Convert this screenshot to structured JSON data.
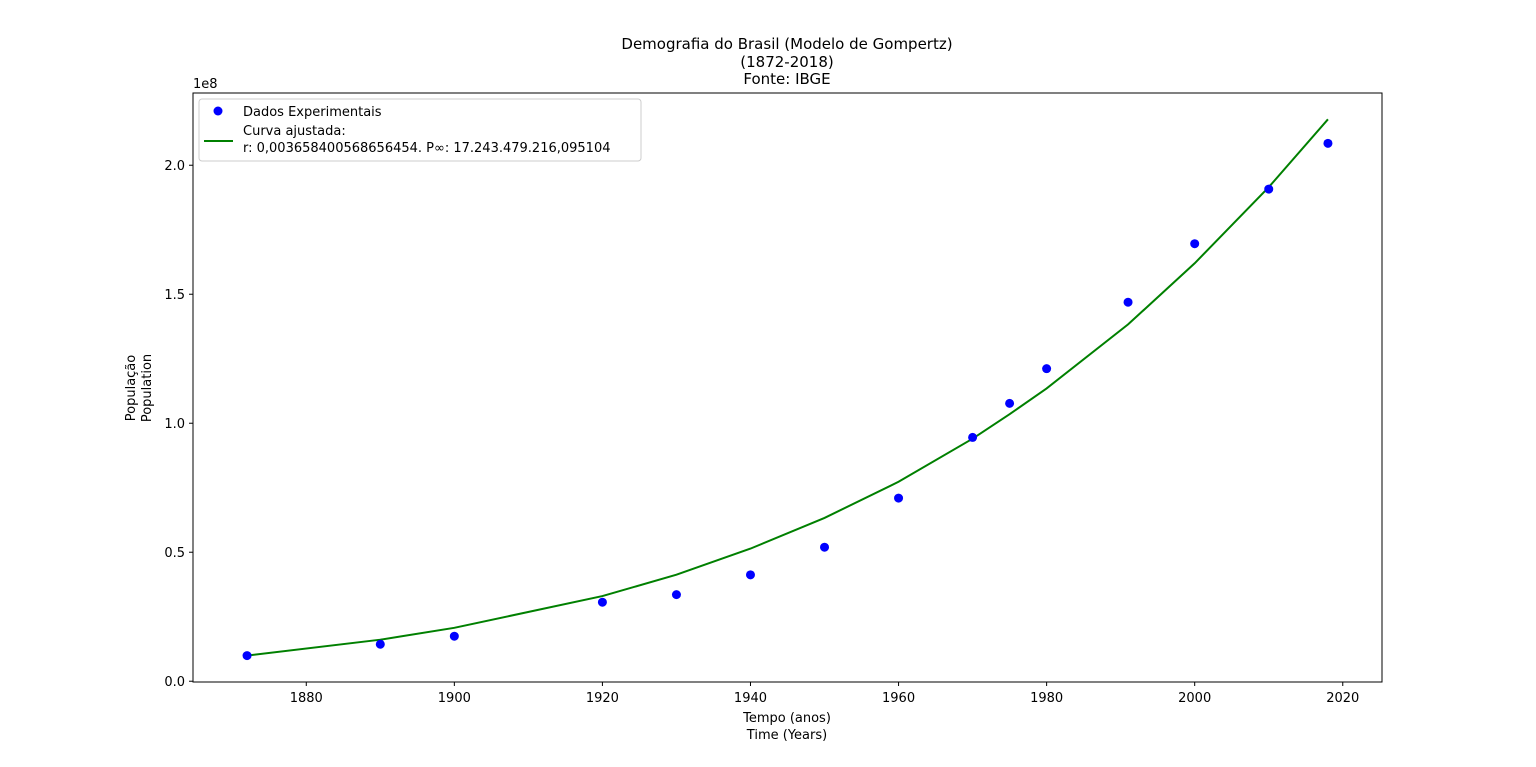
{
  "chart_data": {
    "type": "line",
    "title": [
      "Demografia do Brasil (Modelo de Gompertz)",
      "(1872-2018)",
      "Fonte: IBGE"
    ],
    "xlabel": [
      "Tempo (anos)",
      "Time (Years)"
    ],
    "ylabel": [
      "População",
      "Population"
    ],
    "y_offset_text": "1e8",
    "xlim": [
      1864.7,
      2025.3
    ],
    "ylim": [
      -300000.0,
      228000000.0
    ],
    "x_ticks": [
      1880,
      1900,
      1920,
      1940,
      1960,
      1980,
      2000,
      2020
    ],
    "x_tick_labels": [
      "1880",
      "1900",
      "1920",
      "1940",
      "1960",
      "1980",
      "2000",
      "2020"
    ],
    "y_ticks": [
      0,
      50000000.0,
      100000000.0,
      150000000.0,
      200000000.0
    ],
    "y_tick_labels": [
      "0.0",
      "0.5",
      "1.0",
      "1.5",
      "2.0"
    ],
    "grid": false,
    "legend_position": "upper-left",
    "series": [
      {
        "name": "Dados Experimentais",
        "kind": "scatter",
        "color": "#0000ff",
        "x": [
          1872,
          1890,
          1900,
          1920,
          1930,
          1940,
          1950,
          1960,
          1970,
          1975,
          1980,
          1991,
          2000,
          2010,
          2018
        ],
        "y": [
          9930478,
          14333915,
          17438434,
          30635605,
          33568000,
          41236315,
          51944397,
          70992343,
          94508583,
          107700000,
          121150573,
          146917459,
          169590693,
          190755799,
          208494900
        ]
      },
      {
        "name": "Curva ajustada:\nr: 0,003658400568656454. P∞: 17.243.479.216,095104",
        "kind": "line",
        "color": "#008000",
        "x": [
          1872,
          1890,
          1900,
          1920,
          1930,
          1940,
          1950,
          1960,
          1970,
          1975,
          1980,
          1991,
          2000,
          2010,
          2018
        ],
        "y": [
          9930478,
          16100000,
          20700000,
          33000000,
          41300000,
          51400000,
          63300000,
          77300000,
          94000000,
          103500000,
          113500000,
          138300000,
          162000000,
          191500000,
          217800000
        ]
      }
    ]
  }
}
